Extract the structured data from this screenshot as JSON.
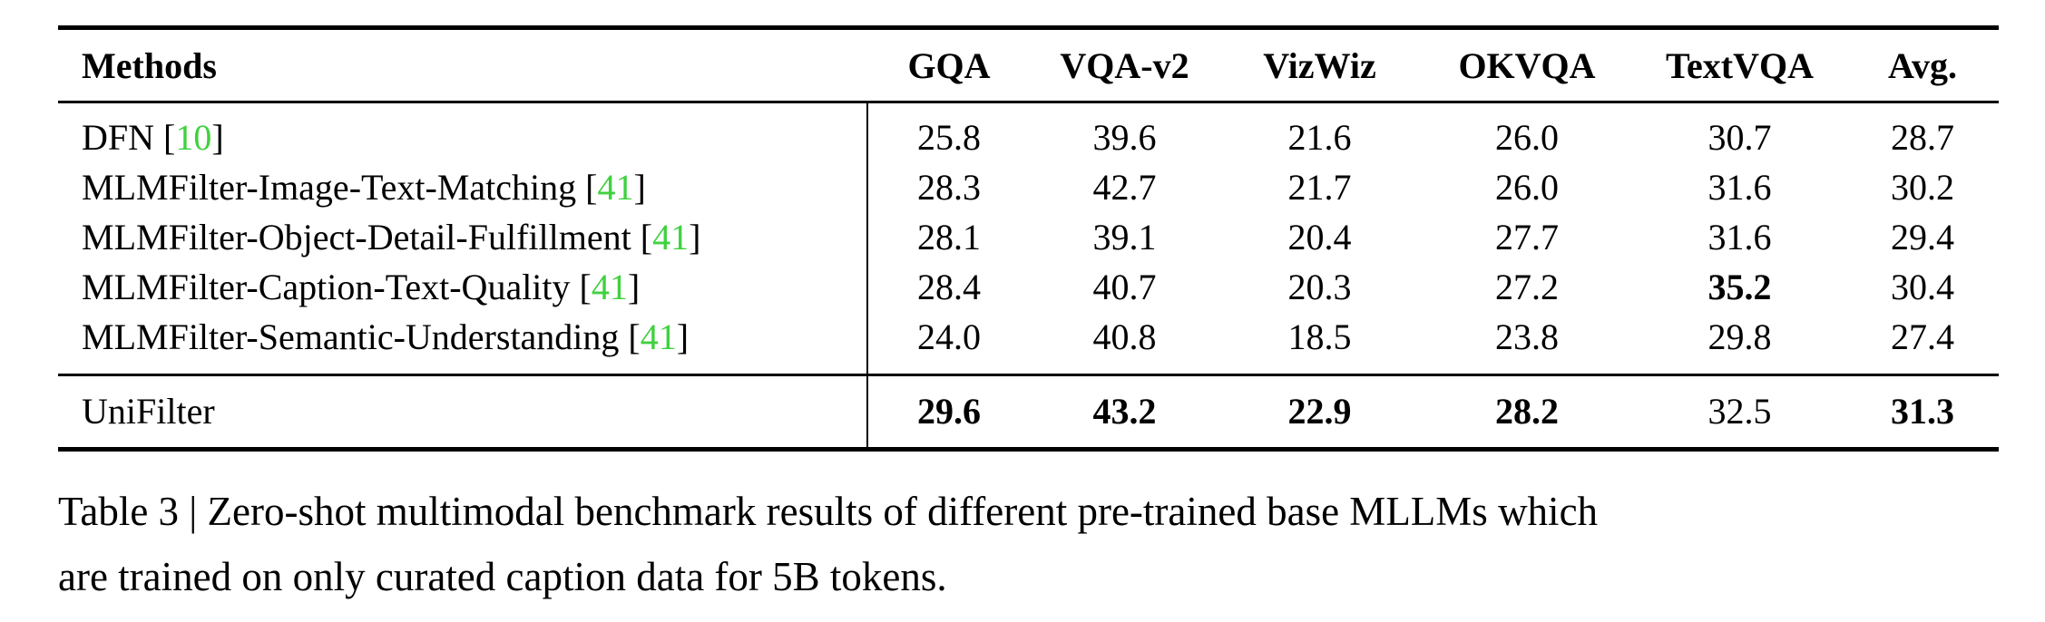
{
  "table": {
    "columns": [
      "Methods",
      "GQA",
      "VQA-v2",
      "VizWiz",
      "OKVQA",
      "TextVQA",
      "Avg."
    ],
    "rows": [
      {
        "method": "DFN",
        "cite": "10",
        "values": [
          "25.8",
          "39.6",
          "21.6",
          "26.0",
          "30.7",
          "28.7"
        ],
        "bold": []
      },
      {
        "method": "MLMFilter-Image-Text-Matching",
        "cite": "41",
        "values": [
          "28.3",
          "42.7",
          "21.7",
          "26.0",
          "31.6",
          "30.2"
        ],
        "bold": []
      },
      {
        "method": "MLMFilter-Object-Detail-Fulfillment",
        "cite": "41",
        "values": [
          "28.1",
          "39.1",
          "20.4",
          "27.7",
          "31.6",
          "29.4"
        ],
        "bold": []
      },
      {
        "method": "MLMFilter-Caption-Text-Quality",
        "cite": "41",
        "values": [
          "28.4",
          "40.7",
          "20.3",
          "27.2",
          "35.2",
          "30.4"
        ],
        "bold": [
          4
        ]
      },
      {
        "method": "MLMFilter-Semantic-Understanding",
        "cite": "41",
        "values": [
          "24.0",
          "40.8",
          "18.5",
          "23.8",
          "29.8",
          "27.4"
        ],
        "bold": []
      },
      {
        "method": "UniFilter",
        "cite": null,
        "values": [
          "29.6",
          "43.2",
          "22.9",
          "28.2",
          "32.5",
          "31.3"
        ],
        "bold": [
          0,
          1,
          2,
          3,
          5
        ]
      }
    ]
  },
  "caption": {
    "line1": "Table 3 | Zero-shot multimodal benchmark results of different pre-trained base MLLMs which",
    "line2": "are trained on only curated caption data for 5B tokens."
  },
  "colors": {
    "citation": "#3fd13f",
    "text": "#000000"
  }
}
